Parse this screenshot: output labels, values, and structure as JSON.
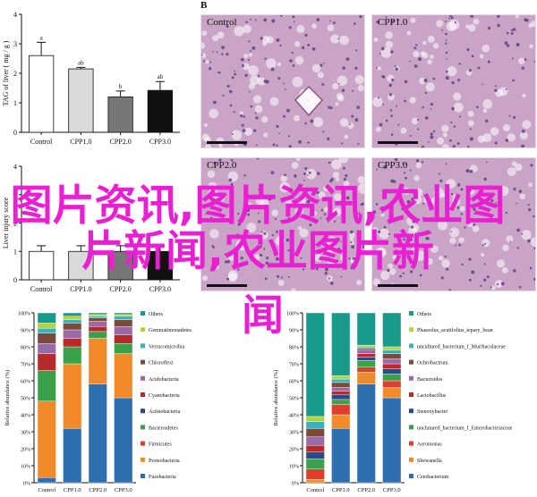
{
  "panel_b_label": "B",
  "overlay_text": "图片资讯,图片资讯,农业图片新闻,农业图片新",
  "overlay_text_tail": "闻",
  "histology": {
    "panels": [
      {
        "label": "Control"
      },
      {
        "label": "CPP1.0"
      },
      {
        "label": "CPP2.0"
      },
      {
        "label": "CPP3.0"
      }
    ],
    "tissue_color": "#c9a4c7",
    "nuclei_color": "#5a3a7a"
  },
  "chart_data": [
    {
      "type": "bar",
      "ylabel": "TAG of liver ( mg / g )",
      "categories": [
        "Control",
        "CPP1.0",
        "CPP2.0",
        "CPP3.0"
      ],
      "values": [
        2.6,
        2.15,
        1.2,
        1.42
      ],
      "errors": [
        0.45,
        0.05,
        0.2,
        0.3
      ],
      "letters": [
        "a",
        "ab",
        "b",
        "ab"
      ],
      "colors": [
        "#ffffff",
        "#d9d9d9",
        "#777777",
        "#111111"
      ],
      "ylim": [
        0,
        4
      ],
      "yticks": [
        "0",
        "1",
        "2",
        "3",
        "4"
      ]
    },
    {
      "type": "bar",
      "ylabel": "Liver injury score",
      "categories": [
        "Control",
        "CPP1.0",
        "CPP2.0",
        "CPP3.0"
      ],
      "values": [
        1.0,
        1.0,
        1.0,
        1.0
      ],
      "errors": [
        0.2,
        0.2,
        0.2,
        0.2
      ],
      "colors": [
        "#ffffff",
        "#d9d9d9",
        "#777777",
        "#111111"
      ],
      "ylim": [
        0,
        4
      ],
      "yticks": [
        "0",
        "1",
        "2",
        "3",
        "4"
      ]
    },
    {
      "type": "bar",
      "stacked": true,
      "ylabel": "Relative abundance (%)",
      "categories": [
        "Control",
        "CPP1.0",
        "CPP2.0",
        "CPP3.0"
      ],
      "ylim": [
        0,
        100
      ],
      "yticks": [
        "0%",
        "10%",
        "20%",
        "30%",
        "40%",
        "50%",
        "60%",
        "70%",
        "80%",
        "90%",
        "100%"
      ],
      "series": [
        {
          "name": "Fusobacteria",
          "color": "#2e6fb0",
          "values": [
            3,
            32,
            58,
            50
          ]
        },
        {
          "name": "Proteobacteria",
          "color": "#f08a2a",
          "values": [
            45,
            38,
            27,
            26
          ]
        },
        {
          "name": "Firmicutes",
          "color": "#e23c2c",
          "values": [
            0,
            0,
            0,
            0
          ]
        },
        {
          "name": "Bacteroidetes",
          "color": "#3aa14a",
          "values": [
            18,
            10,
            4,
            6
          ]
        },
        {
          "name": "Actinobacteria",
          "color": "#2a4a8a",
          "values": [
            0,
            0,
            0,
            0
          ]
        },
        {
          "name": "Cyanobacteria",
          "color": "#b82a2a",
          "values": [
            10,
            5,
            3,
            5
          ]
        },
        {
          "name": "Acidobacteria",
          "color": "#9a6aa6",
          "values": [
            6,
            5,
            3,
            5
          ]
        },
        {
          "name": "Chloroflexi",
          "color": "#7a4a3a",
          "values": [
            6,
            4,
            2,
            4
          ]
        },
        {
          "name": "Verrucomicrobia",
          "color": "#3ab0c0",
          "values": [
            3,
            2,
            1,
            2
          ]
        },
        {
          "name": "Gemmatimonadetes",
          "color": "#b4d23a",
          "values": [
            3,
            2,
            1,
            1
          ]
        },
        {
          "name": "Others",
          "color": "#1a9a8a",
          "values": [
            6,
            2,
            1,
            1
          ]
        }
      ]
    },
    {
      "type": "bar",
      "stacked": true,
      "ylabel": "Relative abundance (%)",
      "categories": [
        "Control",
        "CPP1.0",
        "CPP2.0",
        "CPP3.0"
      ],
      "ylim": [
        0,
        100
      ],
      "yticks": [
        "0%",
        "10%",
        "20%",
        "30%",
        "40%",
        "50%",
        "60%",
        "70%",
        "80%",
        "90%",
        "100%"
      ],
      "series": [
        {
          "name": "Cetobacterium",
          "color": "#2e6fb0",
          "values": [
            0,
            32,
            58,
            50
          ]
        },
        {
          "name": "Shewanella",
          "color": "#f08a2a",
          "values": [
            2,
            8,
            7,
            6
          ]
        },
        {
          "name": "Aeromonas",
          "color": "#e23c2c",
          "values": [
            6,
            6,
            3,
            4
          ]
        },
        {
          "name": "unclutured_bacterium_f_Enterobacteriaceae",
          "color": "#3aa14a",
          "values": [
            6,
            3,
            4,
            4
          ]
        },
        {
          "name": "Stenoxybacter",
          "color": "#2a4a8a",
          "values": [
            4,
            3,
            2,
            3
          ]
        },
        {
          "name": "Lactobacillus",
          "color": "#b82a2a",
          "values": [
            4,
            2,
            2,
            3
          ]
        },
        {
          "name": "Bacteroides",
          "color": "#9a6aa6",
          "values": [
            5,
            2,
            2,
            3
          ]
        },
        {
          "name": "Ochrobactrum",
          "color": "#7a4a3a",
          "values": [
            5,
            3,
            1,
            3
          ]
        },
        {
          "name": "uncultured_bacterium_f_Muribaculaceae",
          "color": "#3ab0c0",
          "values": [
            4,
            2,
            1,
            2
          ]
        },
        {
          "name": "Phaseolus_acutifolius_tepary_bean",
          "color": "#b4d23a",
          "values": [
            3,
            2,
            1,
            2
          ]
        },
        {
          "name": "Others",
          "color": "#1a9a8a",
          "values": [
            61,
            37,
            19,
            20
          ]
        }
      ]
    }
  ]
}
